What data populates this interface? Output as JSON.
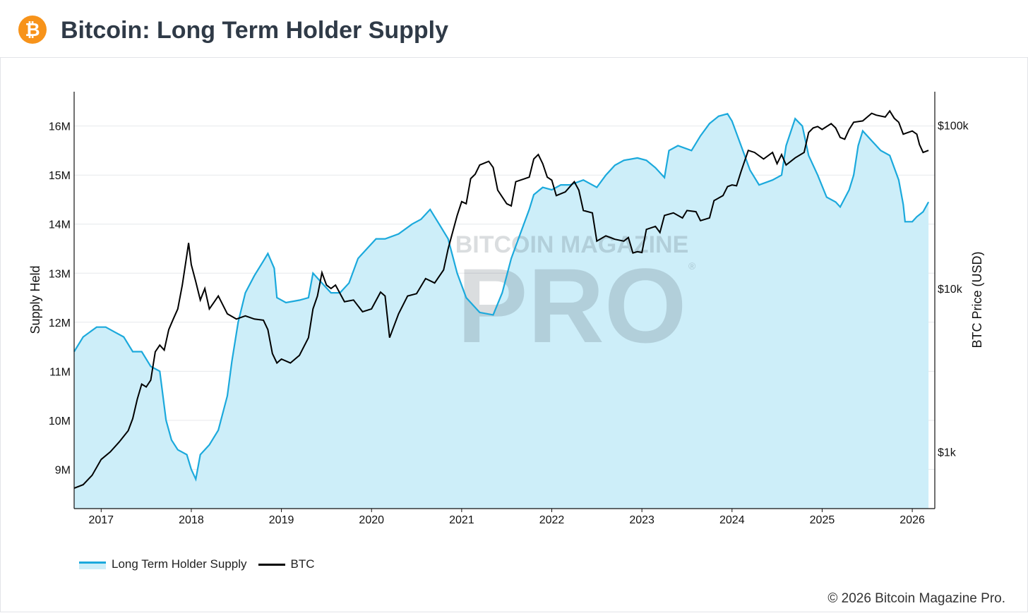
{
  "header": {
    "logo_symbol": "₿",
    "logo_icon": "bitcoin-icon",
    "title": "Bitcoin: Long Term Holder Supply"
  },
  "watermark": {
    "top": "BITCOIN MAGAZINE",
    "big": "PRO",
    "reg": "®"
  },
  "footer": {
    "copyright": "© 2026 Bitcoin Magazine Pro."
  },
  "colors": {
    "ltsh_line": "#1ba9dc",
    "ltsh_fill": "#cdeef9",
    "btc_line": "#000000"
  },
  "chart_data": {
    "type": "line",
    "xlabel": "",
    "ylabel": "Supply Held",
    "y2label": "BTC Price (USD)",
    "x_ticks": [
      "2017",
      "2018",
      "2019",
      "2020",
      "2021",
      "2022",
      "2023",
      "2024",
      "2025",
      "2026"
    ],
    "y_ticks": [
      "9M",
      "10M",
      "11M",
      "12M",
      "13M",
      "14M",
      "15M",
      "16M"
    ],
    "y2_ticks": [
      "$1k",
      "$10k",
      "$100k"
    ],
    "y2_scale": "log",
    "ylim": [
      8.2,
      16.7
    ],
    "y2lim": [
      450,
      160000
    ],
    "legend_position": "bottom-left",
    "grid": true,
    "series": [
      {
        "name": "Long Term Holder Supply",
        "area": true,
        "axis": "left",
        "values": [
          [
            2016.7,
            11.4
          ],
          [
            2016.8,
            11.7
          ],
          [
            2016.95,
            11.9
          ],
          [
            2017.05,
            11.9
          ],
          [
            2017.15,
            11.8
          ],
          [
            2017.25,
            11.7
          ],
          [
            2017.35,
            11.4
          ],
          [
            2017.45,
            11.4
          ],
          [
            2017.55,
            11.1
          ],
          [
            2017.65,
            11.0
          ],
          [
            2017.72,
            10.0
          ],
          [
            2017.78,
            9.6
          ],
          [
            2017.85,
            9.4
          ],
          [
            2017.95,
            9.3
          ],
          [
            2018.0,
            9.0
          ],
          [
            2018.05,
            8.8
          ],
          [
            2018.1,
            9.3
          ],
          [
            2018.2,
            9.5
          ],
          [
            2018.3,
            9.8
          ],
          [
            2018.4,
            10.5
          ],
          [
            2018.45,
            11.2
          ],
          [
            2018.52,
            12.0
          ],
          [
            2018.6,
            12.6
          ],
          [
            2018.7,
            12.95
          ],
          [
            2018.8,
            13.25
          ],
          [
            2018.85,
            13.4
          ],
          [
            2018.92,
            13.1
          ],
          [
            2018.95,
            12.5
          ],
          [
            2019.05,
            12.4
          ],
          [
            2019.2,
            12.45
          ],
          [
            2019.3,
            12.5
          ],
          [
            2019.35,
            13.0
          ],
          [
            2019.45,
            12.8
          ],
          [
            2019.55,
            12.6
          ],
          [
            2019.65,
            12.6
          ],
          [
            2019.75,
            12.8
          ],
          [
            2019.85,
            13.3
          ],
          [
            2019.95,
            13.5
          ],
          [
            2020.05,
            13.7
          ],
          [
            2020.15,
            13.7
          ],
          [
            2020.3,
            13.8
          ],
          [
            2020.45,
            14.0
          ],
          [
            2020.55,
            14.1
          ],
          [
            2020.65,
            14.3
          ],
          [
            2020.75,
            14.0
          ],
          [
            2020.85,
            13.7
          ],
          [
            2020.95,
            13.0
          ],
          [
            2021.05,
            12.5
          ],
          [
            2021.2,
            12.2
          ],
          [
            2021.35,
            12.15
          ],
          [
            2021.45,
            12.6
          ],
          [
            2021.55,
            13.3
          ],
          [
            2021.65,
            13.8
          ],
          [
            2021.75,
            14.3
          ],
          [
            2021.8,
            14.6
          ],
          [
            2021.9,
            14.75
          ],
          [
            2022.0,
            14.7
          ],
          [
            2022.1,
            14.8
          ],
          [
            2022.2,
            14.8
          ],
          [
            2022.35,
            14.9
          ],
          [
            2022.5,
            14.75
          ],
          [
            2022.6,
            15.0
          ],
          [
            2022.7,
            15.2
          ],
          [
            2022.8,
            15.3
          ],
          [
            2022.95,
            15.35
          ],
          [
            2023.05,
            15.3
          ],
          [
            2023.15,
            15.15
          ],
          [
            2023.25,
            14.95
          ],
          [
            2023.3,
            15.5
          ],
          [
            2023.4,
            15.6
          ],
          [
            2023.55,
            15.5
          ],
          [
            2023.65,
            15.8
          ],
          [
            2023.75,
            16.05
          ],
          [
            2023.85,
            16.2
          ],
          [
            2023.95,
            16.25
          ],
          [
            2024.0,
            16.1
          ],
          [
            2024.1,
            15.6
          ],
          [
            2024.2,
            15.1
          ],
          [
            2024.3,
            14.8
          ],
          [
            2024.45,
            14.9
          ],
          [
            2024.55,
            15.0
          ],
          [
            2024.6,
            15.6
          ],
          [
            2024.7,
            16.15
          ],
          [
            2024.78,
            16.0
          ],
          [
            2024.85,
            15.4
          ],
          [
            2024.95,
            15.0
          ],
          [
            2025.05,
            14.55
          ],
          [
            2025.15,
            14.45
          ],
          [
            2025.2,
            14.35
          ],
          [
            2025.3,
            14.7
          ],
          [
            2025.35,
            15.0
          ],
          [
            2025.4,
            15.6
          ],
          [
            2025.45,
            15.9
          ],
          [
            2025.55,
            15.7
          ],
          [
            2025.65,
            15.5
          ],
          [
            2025.75,
            15.4
          ],
          [
            2025.85,
            14.9
          ],
          [
            2025.9,
            14.4
          ],
          [
            2025.92,
            14.05
          ],
          [
            2026.0,
            14.05
          ],
          [
            2026.05,
            14.15
          ],
          [
            2026.12,
            14.25
          ],
          [
            2026.18,
            14.45
          ]
        ]
      },
      {
        "name": "BTC",
        "area": false,
        "axis": "right",
        "values": [
          [
            2016.7,
            600
          ],
          [
            2016.8,
            630
          ],
          [
            2016.9,
            720
          ],
          [
            2017.0,
            900
          ],
          [
            2017.1,
            1000
          ],
          [
            2017.2,
            1150
          ],
          [
            2017.3,
            1350
          ],
          [
            2017.35,
            1600
          ],
          [
            2017.4,
            2100
          ],
          [
            2017.45,
            2600
          ],
          [
            2017.5,
            2500
          ],
          [
            2017.55,
            2750
          ],
          [
            2017.6,
            4100
          ],
          [
            2017.65,
            4500
          ],
          [
            2017.7,
            4200
          ],
          [
            2017.75,
            5600
          ],
          [
            2017.8,
            6500
          ],
          [
            2017.85,
            7500
          ],
          [
            2017.9,
            10500
          ],
          [
            2017.95,
            16000
          ],
          [
            2017.97,
            19000
          ],
          [
            2018.0,
            14000
          ],
          [
            2018.05,
            11000
          ],
          [
            2018.1,
            8500
          ],
          [
            2018.15,
            10000
          ],
          [
            2018.2,
            7500
          ],
          [
            2018.25,
            8200
          ],
          [
            2018.3,
            9000
          ],
          [
            2018.4,
            7000
          ],
          [
            2018.5,
            6500
          ],
          [
            2018.6,
            6800
          ],
          [
            2018.7,
            6500
          ],
          [
            2018.8,
            6400
          ],
          [
            2018.85,
            5600
          ],
          [
            2018.9,
            4000
          ],
          [
            2018.95,
            3500
          ],
          [
            2019.0,
            3700
          ],
          [
            2019.1,
            3500
          ],
          [
            2019.2,
            3900
          ],
          [
            2019.3,
            5000
          ],
          [
            2019.35,
            7500
          ],
          [
            2019.4,
            9000
          ],
          [
            2019.45,
            12500
          ],
          [
            2019.5,
            10500
          ],
          [
            2019.55,
            10000
          ],
          [
            2019.6,
            10500
          ],
          [
            2019.7,
            8300
          ],
          [
            2019.8,
            8500
          ],
          [
            2019.9,
            7200
          ],
          [
            2020.0,
            7500
          ],
          [
            2020.1,
            9500
          ],
          [
            2020.15,
            9000
          ],
          [
            2020.2,
            5000
          ],
          [
            2020.3,
            7000
          ],
          [
            2020.4,
            9000
          ],
          [
            2020.5,
            9300
          ],
          [
            2020.6,
            11500
          ],
          [
            2020.7,
            10800
          ],
          [
            2020.8,
            13000
          ],
          [
            2020.85,
            17500
          ],
          [
            2020.95,
            28000
          ],
          [
            2021.0,
            34000
          ],
          [
            2021.05,
            33000
          ],
          [
            2021.1,
            47000
          ],
          [
            2021.15,
            50000
          ],
          [
            2021.2,
            57000
          ],
          [
            2021.3,
            60000
          ],
          [
            2021.35,
            55000
          ],
          [
            2021.4,
            40000
          ],
          [
            2021.5,
            33000
          ],
          [
            2021.55,
            32000
          ],
          [
            2021.6,
            45000
          ],
          [
            2021.7,
            47000
          ],
          [
            2021.75,
            48000
          ],
          [
            2021.8,
            62000
          ],
          [
            2021.85,
            66000
          ],
          [
            2021.9,
            58000
          ],
          [
            2021.95,
            48000
          ],
          [
            2022.0,
            46000
          ],
          [
            2022.05,
            37000
          ],
          [
            2022.15,
            39000
          ],
          [
            2022.25,
            45000
          ],
          [
            2022.3,
            40000
          ],
          [
            2022.35,
            30000
          ],
          [
            2022.45,
            29000
          ],
          [
            2022.5,
            19500
          ],
          [
            2022.6,
            21000
          ],
          [
            2022.7,
            20000
          ],
          [
            2022.8,
            19500
          ],
          [
            2022.85,
            20500
          ],
          [
            2022.9,
            16500
          ],
          [
            2022.95,
            16800
          ],
          [
            2023.0,
            16600
          ],
          [
            2023.05,
            23000
          ],
          [
            2023.15,
            24000
          ],
          [
            2023.2,
            22000
          ],
          [
            2023.25,
            28000
          ],
          [
            2023.35,
            29000
          ],
          [
            2023.45,
            27000
          ],
          [
            2023.5,
            30000
          ],
          [
            2023.6,
            29500
          ],
          [
            2023.65,
            26000
          ],
          [
            2023.75,
            27000
          ],
          [
            2023.8,
            34500
          ],
          [
            2023.9,
            37000
          ],
          [
            2023.95,
            42000
          ],
          [
            2024.0,
            43000
          ],
          [
            2024.05,
            42500
          ],
          [
            2024.1,
            52000
          ],
          [
            2024.18,
            70000
          ],
          [
            2024.25,
            68000
          ],
          [
            2024.35,
            62000
          ],
          [
            2024.45,
            68000
          ],
          [
            2024.5,
            58000
          ],
          [
            2024.55,
            66000
          ],
          [
            2024.6,
            57000
          ],
          [
            2024.7,
            63000
          ],
          [
            2024.8,
            68000
          ],
          [
            2024.85,
            90000
          ],
          [
            2024.9,
            96000
          ],
          [
            2024.95,
            98000
          ],
          [
            2025.0,
            94000
          ],
          [
            2025.1,
            102000
          ],
          [
            2025.15,
            96000
          ],
          [
            2025.2,
            84000
          ],
          [
            2025.25,
            82000
          ],
          [
            2025.3,
            94000
          ],
          [
            2025.35,
            104000
          ],
          [
            2025.45,
            106000
          ],
          [
            2025.55,
            118000
          ],
          [
            2025.6,
            115000
          ],
          [
            2025.7,
            112000
          ],
          [
            2025.75,
            122000
          ],
          [
            2025.8,
            110000
          ],
          [
            2025.85,
            104000
          ],
          [
            2025.9,
            88000
          ],
          [
            2025.95,
            90000
          ],
          [
            2026.0,
            92000
          ],
          [
            2026.05,
            88000
          ],
          [
            2026.08,
            76000
          ],
          [
            2026.12,
            68000
          ],
          [
            2026.18,
            70000
          ]
        ]
      }
    ]
  }
}
